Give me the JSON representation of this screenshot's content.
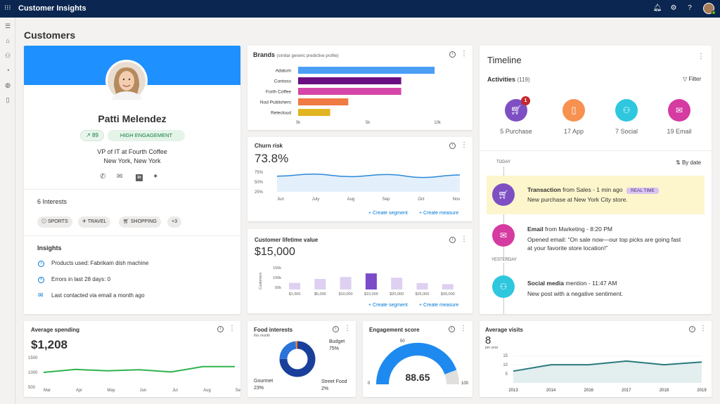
{
  "app": {
    "title": "Customer Insights"
  },
  "page": {
    "title": "Customers"
  },
  "profile": {
    "name": "Patti Melendez",
    "score": "89",
    "engagement": "HIGH ENGAGEMENT",
    "job": "VP of IT at Fourth Coffee",
    "location": "New York, New York",
    "interests_title": "6 Interests",
    "interests": [
      "SPORTS",
      "TRAVEL",
      "SHOPPING",
      "+3"
    ],
    "insights_title": "Insights",
    "insights": [
      "Products used: Fabrikam dish machine",
      "Errors in last 28 days: 0",
      "Last contacted via email a month ago"
    ]
  },
  "brands": {
    "title": "Brands",
    "subtitle": "(similar generic predictive profile)",
    "chart_data": {
      "type": "bar",
      "orientation": "horizontal",
      "categories": [
        "Adatum",
        "Contoso",
        "Forth Coffee",
        "Nod Publishers",
        "Relecloud"
      ],
      "values": [
        9800,
        7400,
        7400,
        3600,
        2300
      ],
      "colors": [
        "#4a9ff5",
        "#6a0d83",
        "#d645a8",
        "#ef7a43",
        "#e0b521"
      ],
      "ticks": [
        "0k",
        "5k",
        "10k"
      ],
      "xlim": [
        0,
        10500
      ]
    }
  },
  "churn": {
    "title": "Churn risk",
    "value": "73.8%",
    "chart_data": {
      "type": "area",
      "categories": [
        "Jun",
        "July",
        "Aug",
        "Sep",
        "Oct",
        "Nov"
      ],
      "values": [
        62,
        67,
        61,
        66,
        59,
        65
      ],
      "yticks": [
        "75%",
        "50%",
        "25%"
      ],
      "ylim": [
        25,
        75
      ]
    },
    "links": [
      "Create segment",
      "Create measure"
    ]
  },
  "clv": {
    "title": "Customer lifetime value",
    "value": "$15,000",
    "ylabel": "Customers",
    "chart_data": {
      "type": "bar",
      "categories": [
        "$1,000",
        "$5,000",
        "$10,000",
        "$15,000",
        "$20,000",
        "$25,000",
        "$30,000"
      ],
      "values": [
        68,
        91,
        102,
        123,
        98,
        67,
        61
      ],
      "highlight": 3,
      "yticks": [
        "150k",
        "100k",
        "50k"
      ],
      "ylim": [
        30,
        160
      ]
    },
    "links": [
      "Create segment",
      "Create measure"
    ]
  },
  "timeline": {
    "title": "Timeline",
    "activities_label": "Activities",
    "activities_count": "(119)",
    "filter": "Filter",
    "cats": [
      {
        "label": "5 Purchase",
        "color": "#7e4fc3",
        "badge": "1"
      },
      {
        "label": "17 App",
        "color": "#f79150",
        "badge": ""
      },
      {
        "label": "7 Social",
        "color": "#2ec7de",
        "badge": ""
      },
      {
        "label": "19 Email",
        "color": "#d53ba1",
        "badge": ""
      }
    ],
    "today": "TODAY",
    "sort": "By date",
    "yesterday": "YESTERDAY",
    "items": [
      {
        "title": "Transaction",
        "meta": " from Sales - 1 min ago",
        "badge": "REAL TIME",
        "desc": "New purchase at New York City store.",
        "color": "#7e4fc3"
      },
      {
        "title": "Email",
        "meta": " from Marketing - 8:20 PM",
        "badge": "",
        "desc": "Opened email: “On sale now—our top picks are going fast at your favorite store location!”",
        "color": "#d53ba1"
      },
      {
        "title": "Social media",
        "meta": " mention - 11:47 AM",
        "badge": "",
        "desc": "New post with a negative sentiment.",
        "color": "#2ec7de"
      }
    ]
  },
  "spending": {
    "title": "Average spending",
    "value": "$1,208",
    "chart_data": {
      "type": "line",
      "categories": [
        "Mar",
        "Apr",
        "May",
        "Jun",
        "Jul",
        "Aug",
        "Sep"
      ],
      "values": [
        975,
        1080,
        1030,
        1070,
        990,
        1180,
        1180
      ],
      "yticks": [
        "1500",
        "1000",
        "500"
      ],
      "ylim": [
        500,
        1500
      ],
      "color": "#2eb34b"
    }
  },
  "food": {
    "title": "Food interests",
    "subtitle": "this month",
    "chart_data": {
      "type": "pie",
      "labels": [
        "Budget",
        "Gourmet",
        "Street Food"
      ],
      "values": [
        75,
        23,
        2
      ],
      "colors": [
        "#1a3f9b",
        "#2a73d9",
        "#e97c2e"
      ]
    },
    "labels": [
      {
        "name": "Budget",
        "pct": "75%"
      },
      {
        "name": "Gourmet",
        "pct": "23%"
      },
      {
        "name": "Street Food",
        "pct": "2%"
      }
    ]
  },
  "engagement": {
    "title": "Engagement score",
    "value": "88.65",
    "min": "0",
    "mid": "50",
    "max": "100",
    "level": 0.8865,
    "color": "#1e8af0"
  },
  "visits": {
    "title": "Average visits",
    "value": "8",
    "unit": "per year",
    "chart_data": {
      "type": "area",
      "categories": [
        "2013",
        "2014",
        "2016",
        "2017",
        "2018",
        "2019"
      ],
      "values": [
        6.5,
        10,
        10,
        12,
        10,
        11.5
      ],
      "yticks": [
        "15",
        "10",
        "5"
      ],
      "ylim": [
        0,
        17
      ],
      "color": "#2a7a7d"
    }
  }
}
